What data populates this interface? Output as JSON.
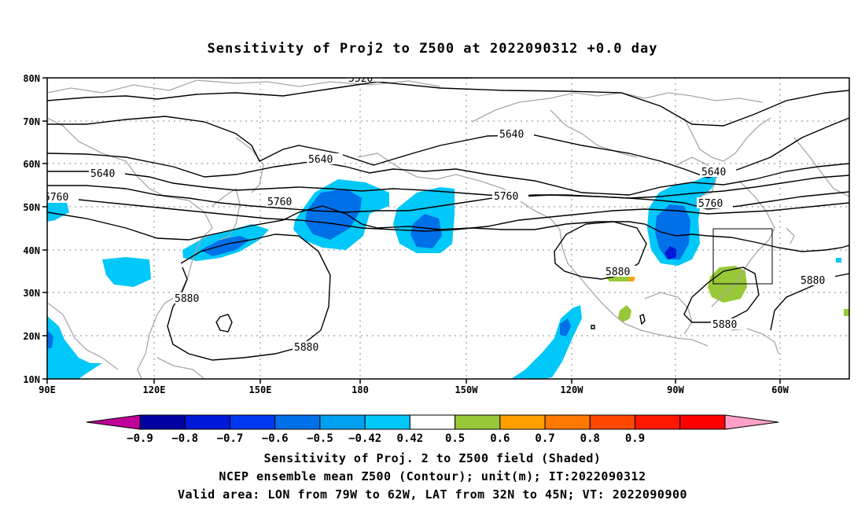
{
  "title": "Sensitivity of Proj2 to Z500 at 2022090312 +0.0 day",
  "lat_labels": [
    "80N",
    "70N",
    "60N",
    "50N",
    "40N",
    "30N",
    "20N",
    "10N"
  ],
  "lon_labels": [
    "90E",
    "120E",
    "150E",
    "180",
    "150W",
    "120W",
    "90W",
    "60W"
  ],
  "contour_labels": [
    "5520",
    "5640",
    "5640",
    "5640",
    "5640",
    "5760",
    "5760",
    "5760",
    "5760",
    "5880",
    "5880",
    "5880",
    "5880",
    "5880"
  ],
  "colorbar": {
    "colors": [
      "#c00099",
      "#0000a0",
      "#0018d8",
      "#0038f0",
      "#0070e8",
      "#00a0f0",
      "#00c8f8",
      "#ffffff",
      "#98c838",
      "#ffa000",
      "#ff7800",
      "#ff4800",
      "#ff1800",
      "#ff0000",
      "#ffa0c8"
    ],
    "labels": [
      "−0.9",
      "−0.8",
      "−0.7",
      "−0.6",
      "−0.5",
      "−0.42",
      "0.42",
      "0.5",
      "0.6",
      "0.7",
      "0.8",
      "0.9"
    ]
  },
  "footer": {
    "line1": "Sensitivity of Proj. 2 to Z500 field (Shaded)",
    "line2": "NCEP ensemble mean Z500 (Contour); unit(m); IT:2022090312",
    "line3": "Valid area: LON from 79W to 62W, LAT from 32N to 45N; VT: 2022090900"
  },
  "valid_area": {
    "lon_min": "79W",
    "lon_max": "62W",
    "lat_min": "32N",
    "lat_max": "45N"
  }
}
